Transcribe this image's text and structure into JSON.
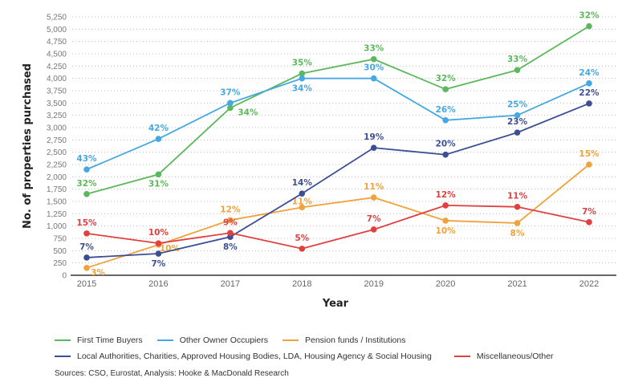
{
  "chart_data": {
    "type": "line",
    "title": "",
    "xlabel": "Year",
    "ylabel": "No. of properties purchased",
    "ylim": [
      0,
      5250
    ],
    "yticks": [
      "0",
      "250",
      "500",
      "750",
      "1,000",
      "1,250",
      "1,500",
      "1,750",
      "2,000",
      "2,250",
      "2,500",
      "2,750",
      "3,000",
      "3,250",
      "3,500",
      "3,750",
      "4,000",
      "4,250",
      "4,500",
      "4,750",
      "5,000",
      "5,250"
    ],
    "x": [
      "2015",
      "2016",
      "2017",
      "2018",
      "2019",
      "2020",
      "2021",
      "2022"
    ],
    "grid": "horizontal dotted",
    "legend_position": "bottom",
    "series": [
      {
        "name": "First Time Buyers",
        "color": "#5cb85c",
        "values": [
          1650,
          2050,
          3400,
          4100,
          4390,
          3780,
          4170,
          5060
        ],
        "labels": [
          "32%",
          "31%",
          "34%",
          "35%",
          "33%",
          "32%",
          "33%",
          "32%"
        ]
      },
      {
        "name": "Other Owner Occupiers",
        "color": "#45a8e0",
        "values": [
          2150,
          2770,
          3500,
          4000,
          4000,
          3150,
          3250,
          3900
        ],
        "labels": [
          "43%",
          "42%",
          "37%",
          "34%",
          "30%",
          "26%",
          "25%",
          "24%"
        ]
      },
      {
        "name": "Pension funds / Institutions",
        "color": "#f0a23c",
        "values": [
          150,
          620,
          1120,
          1380,
          1580,
          1110,
          1060,
          2250
        ],
        "labels": [
          "3%",
          "10%",
          "12%",
          "11%",
          "11%",
          "10%",
          "8%",
          "15%"
        ]
      },
      {
        "name": "Local Authorities, Charities, Approved Housing Bodies, LDA, Housing Agency & Social Housing",
        "color": "#3d4f94",
        "values": [
          360,
          440,
          780,
          1660,
          2590,
          2450,
          2900,
          3490
        ],
        "labels": [
          "7%",
          "7%",
          "8%",
          "14%",
          "19%",
          "20%",
          "23%",
          "22%"
        ]
      },
      {
        "name": "Miscellaneous/Other",
        "color": "#e04040",
        "values": [
          850,
          650,
          860,
          540,
          930,
          1420,
          1390,
          1080
        ],
        "labels": [
          "15%",
          "10%",
          "9%",
          "5%",
          "7%",
          "12%",
          "11%",
          "7%"
        ]
      }
    ]
  },
  "sources": "Sources: CSO, Eurostat, Analysis: Hooke & MacDonald Research"
}
